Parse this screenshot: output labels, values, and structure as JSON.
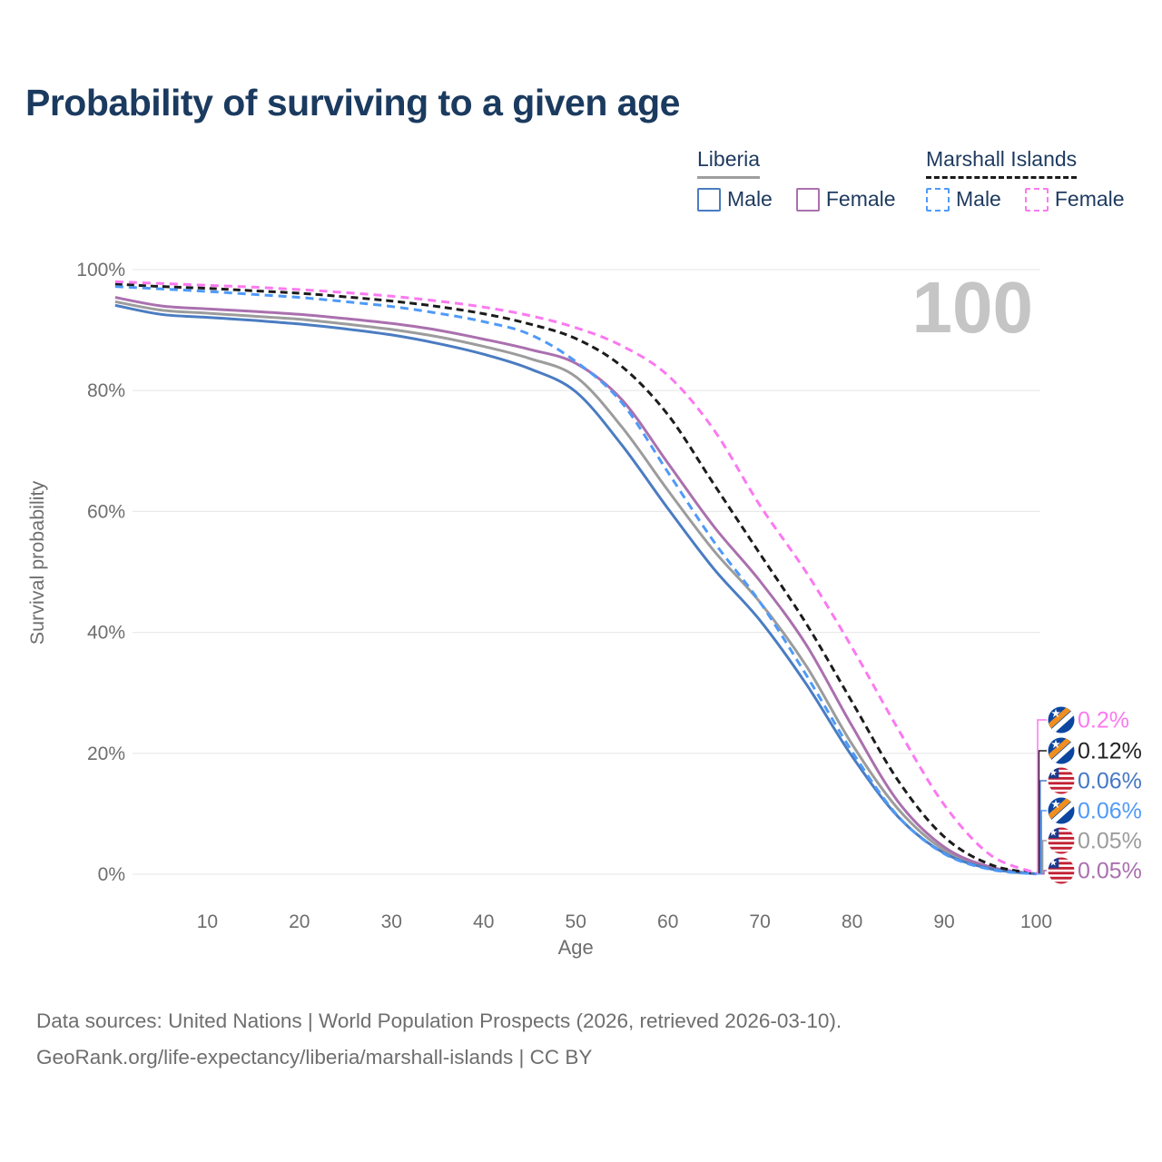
{
  "title": "Probability of surviving to a given age",
  "watermark": "100",
  "legend": {
    "groups": [
      {
        "label": "Liberia",
        "underline_style": "solid",
        "underline_color": "#9e9e9e",
        "items": [
          {
            "label": "Male",
            "color": "#4a7cc2",
            "style": "solid"
          },
          {
            "label": "Female",
            "color": "#aa70ae",
            "style": "solid"
          }
        ]
      },
      {
        "label": "Marshall Islands",
        "underline_style": "dashed",
        "underline_color": "#1a1a1a",
        "items": [
          {
            "label": "Male",
            "color": "#4f9af8",
            "style": "dashed"
          },
          {
            "label": "Female",
            "color": "#fb79f0",
            "style": "dashed"
          }
        ]
      }
    ]
  },
  "sources": {
    "line1": "Data sources: United Nations | World Population Prospects (2026, retrieved 2026-03-10).",
    "line2": "GeoRank.org/life-expectancy/liberia/marshall-islands | CC BY"
  },
  "chart_data": {
    "type": "line",
    "title": "Probability of surviving to a given age",
    "xlabel": "Age",
    "ylabel": "Survival probability",
    "xlim": [
      0,
      100
    ],
    "ylim": [
      0,
      100
    ],
    "grid": "horizontal-only",
    "legend_position": "top-right",
    "x_ticks": [
      10,
      20,
      30,
      40,
      50,
      60,
      70,
      80,
      90,
      100
    ],
    "y_tick_labels": [
      "0%",
      "20%",
      "40%",
      "60%",
      "80%",
      "100%"
    ],
    "y_tick_values": [
      0,
      20,
      40,
      60,
      80,
      100
    ],
    "ages": [
      0,
      5,
      10,
      15,
      20,
      25,
      30,
      35,
      40,
      45,
      50,
      55,
      60,
      65,
      70,
      75,
      80,
      85,
      90,
      95,
      100
    ],
    "series": [
      {
        "id": "liberia-both",
        "name": "Liberia (both sexes)",
        "country": "Liberia",
        "sex": "both",
        "color": "#9c9c9c",
        "line_style": "solid",
        "flag": "liberia",
        "label_slot": 4,
        "end_label": "0.05%",
        "end_label_color": "#9c9c9c",
        "values": [
          94.7,
          93.3,
          92.8,
          92.3,
          91.8,
          91.0,
          90.1,
          88.9,
          87.3,
          85.3,
          82.3,
          74.0,
          63.5,
          53.5,
          45.0,
          34.5,
          21.5,
          10.8,
          4.0,
          1.0,
          0.05
        ]
      },
      {
        "id": "liberia-female",
        "name": "Liberia Female",
        "country": "Liberia",
        "sex": "female",
        "color": "#aa70ae",
        "line_style": "solid",
        "flag": "liberia",
        "label_slot": 5,
        "end_label": "0.05%",
        "end_label_color": "#aa70ae",
        "values": [
          95.4,
          94.0,
          93.5,
          93.1,
          92.6,
          91.9,
          91.1,
          90.0,
          88.5,
          86.8,
          84.5,
          78.5,
          68.0,
          57.5,
          48.5,
          38.0,
          24.5,
          12.0,
          4.5,
          1.2,
          0.05
        ]
      },
      {
        "id": "liberia-male",
        "name": "Liberia Male",
        "country": "Liberia",
        "sex": "male",
        "color": "#4a7cc2",
        "line_style": "solid",
        "flag": "liberia",
        "label_slot": 2,
        "end_label": "0.06%",
        "end_label_color": "#4577c4",
        "values": [
          94.1,
          92.6,
          92.1,
          91.6,
          91.0,
          90.2,
          89.2,
          87.8,
          86.0,
          83.6,
          79.8,
          71.0,
          60.5,
          50.5,
          42.0,
          31.5,
          19.5,
          9.5,
          3.5,
          0.9,
          0.06
        ]
      },
      {
        "id": "marshall-both",
        "name": "Marshall Islands (both sexes)",
        "country": "Marshall Islands",
        "sex": "both",
        "color": "#1c1c1c",
        "line_style": "dashed",
        "flag": "marshall",
        "label_slot": 1,
        "end_label": "0.12%",
        "end_label_color": "#222222",
        "values": [
          97.6,
          97.2,
          96.9,
          96.5,
          96.1,
          95.5,
          94.8,
          93.9,
          92.7,
          91.0,
          88.6,
          84.0,
          76.0,
          64.5,
          53.0,
          41.5,
          28.5,
          15.5,
          6.2,
          1.6,
          0.12
        ]
      },
      {
        "id": "marshall-male",
        "name": "Marshall Islands Male",
        "country": "Marshall Islands",
        "sex": "male",
        "color": "#4f9af8",
        "line_style": "dashed",
        "flag": "marshall",
        "label_slot": 3,
        "end_label": "0.06%",
        "end_label_color": "#4f9af8",
        "values": [
          97.2,
          96.8,
          96.4,
          95.9,
          95.4,
          94.7,
          93.9,
          92.8,
          91.4,
          89.3,
          84.8,
          78.0,
          66.5,
          55.0,
          45.0,
          33.0,
          20.3,
          9.6,
          3.4,
          0.8,
          0.06
        ]
      },
      {
        "id": "marshall-female",
        "name": "Marshall Islands Female",
        "country": "Marshall Islands",
        "sex": "female",
        "color": "#fb79f0",
        "line_style": "dashed",
        "flag": "marshall",
        "label_slot": 0,
        "end_label": "0.2%",
        "end_label_color": "#fb79f0",
        "values": [
          98.0,
          97.7,
          97.4,
          97.1,
          96.7,
          96.2,
          95.6,
          94.8,
          93.8,
          92.4,
          90.4,
          87.4,
          82.5,
          73.5,
          61.0,
          50.0,
          37.5,
          24.0,
          11.5,
          3.2,
          0.2
        ]
      }
    ]
  }
}
